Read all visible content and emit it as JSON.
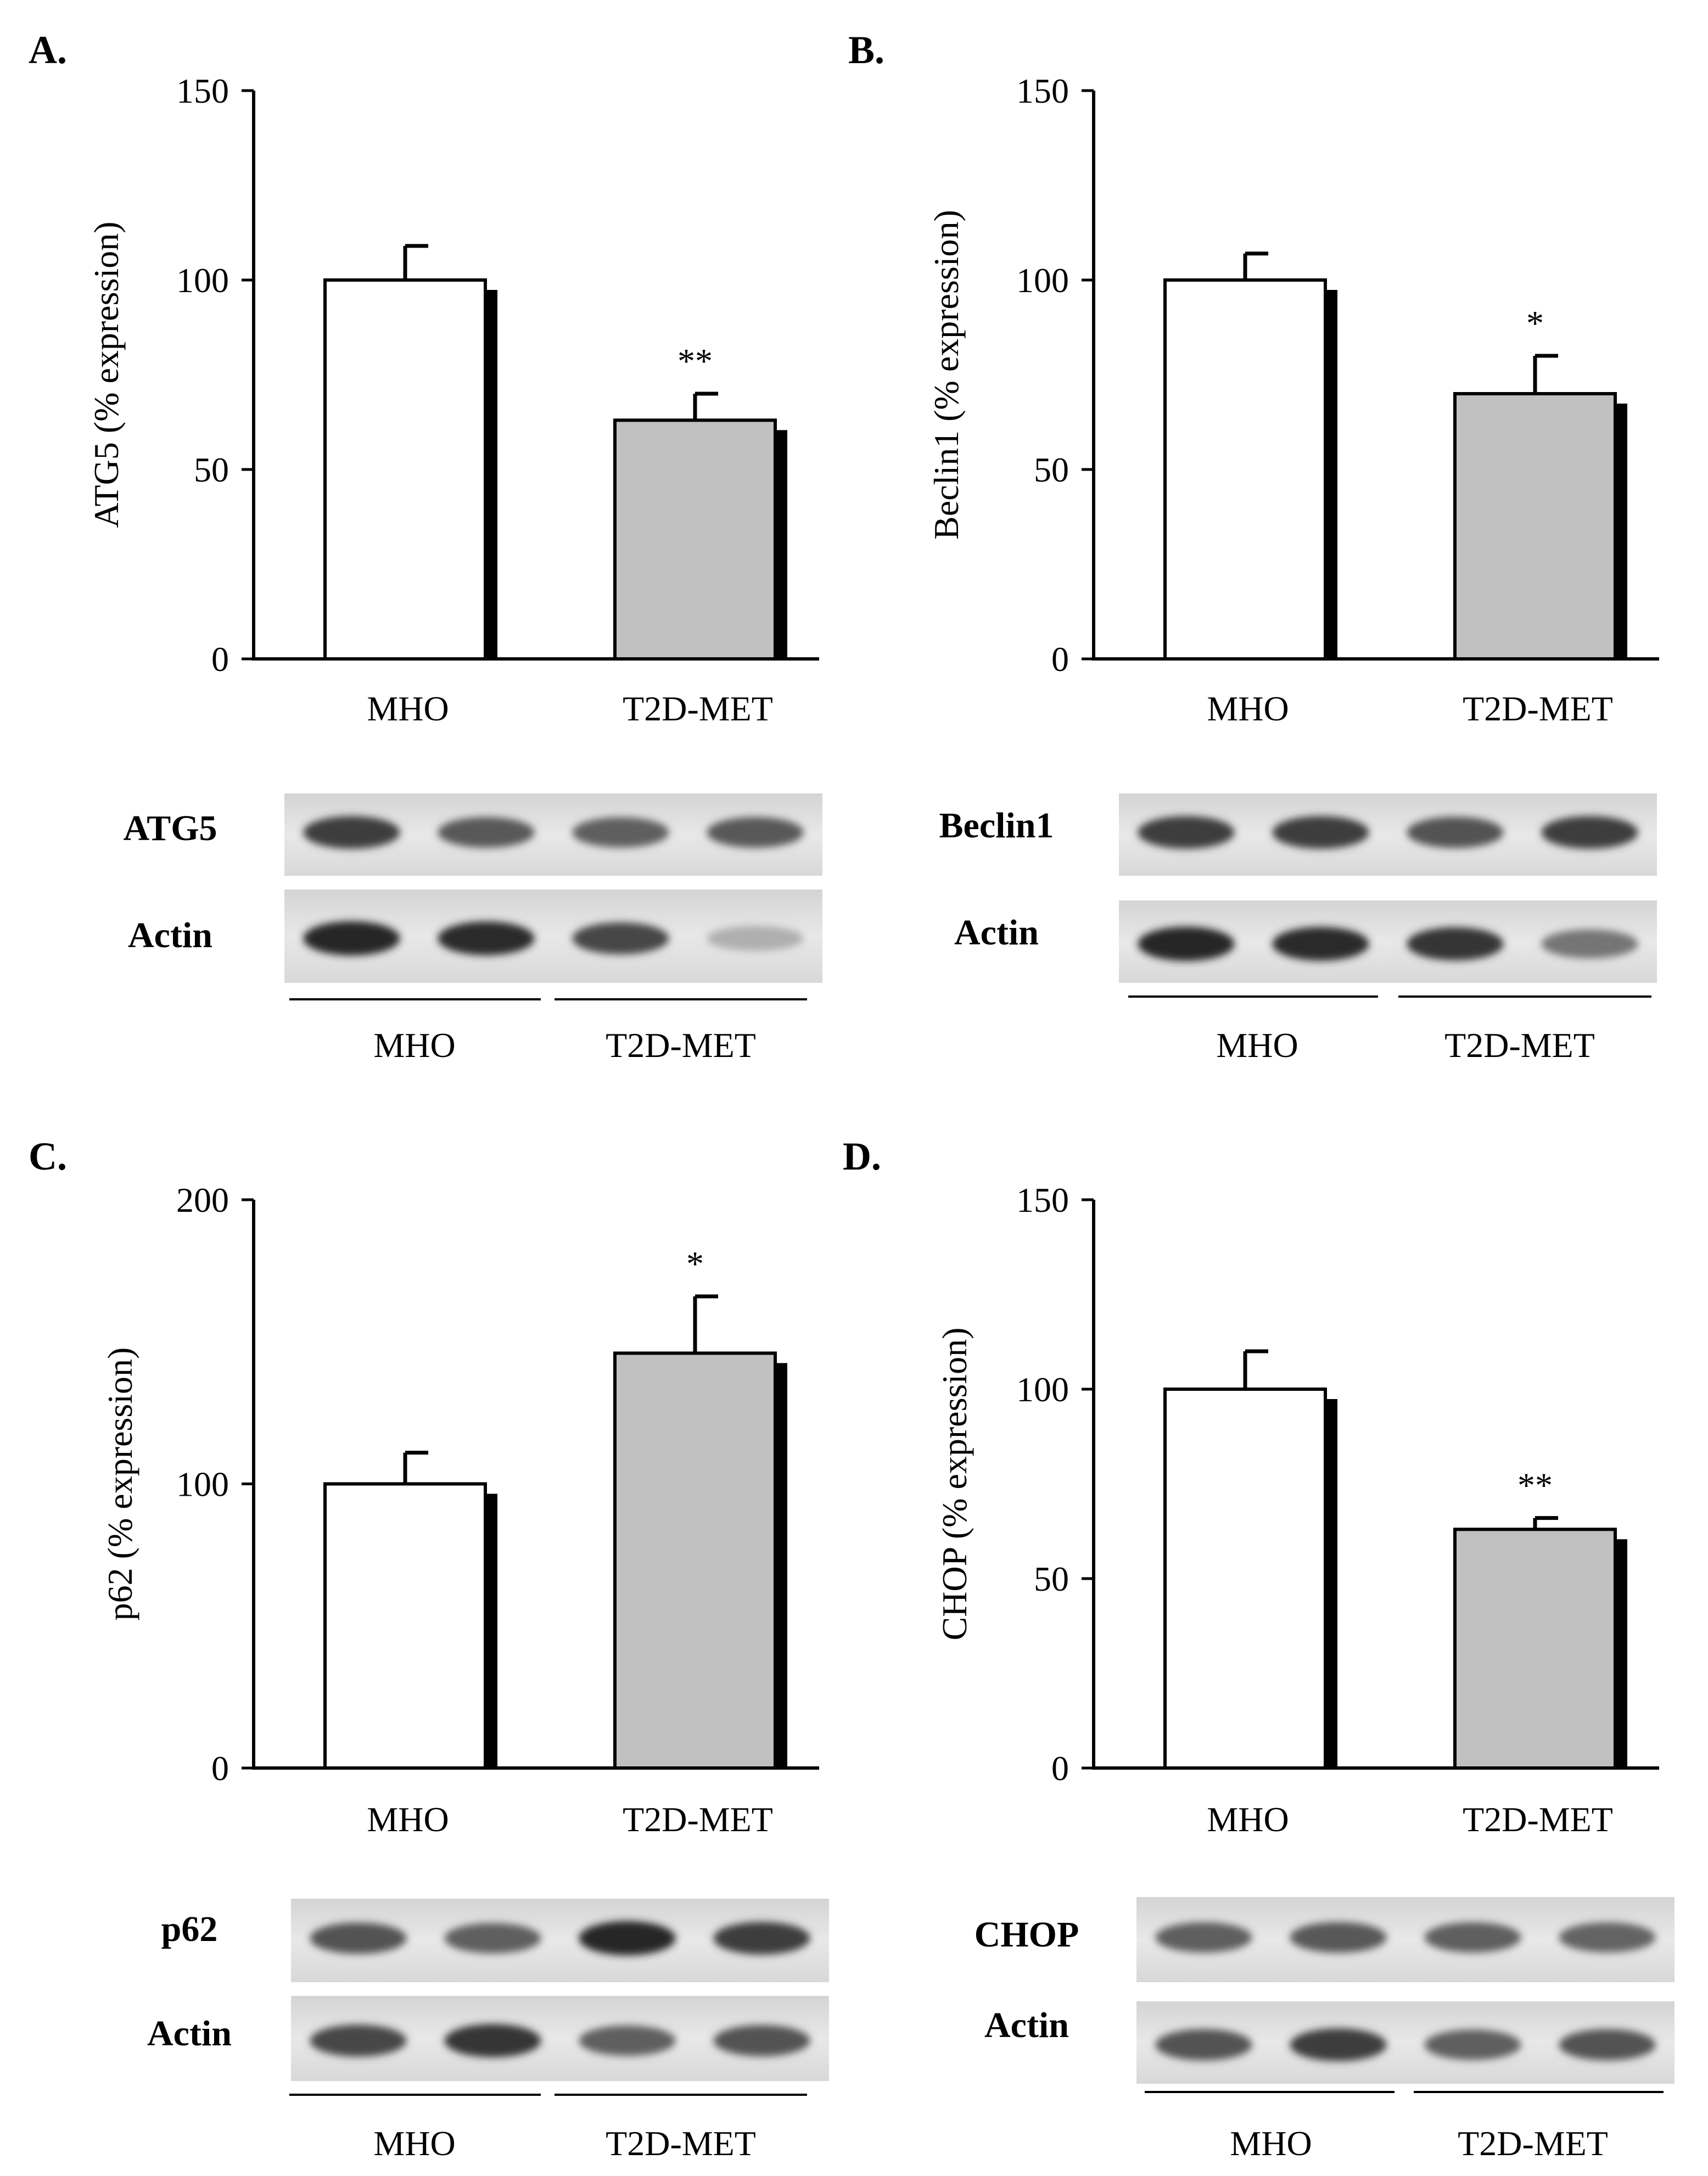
{
  "chart_data": [
    {
      "panel": "A.",
      "type": "bar",
      "ylabel": "ATG5  (% expression)",
      "ylim": [
        0,
        150
      ],
      "yticks": [
        0,
        50,
        100,
        150
      ],
      "categories": [
        "MHO",
        "T2D-MET"
      ],
      "values": [
        100,
        63
      ],
      "errors": [
        9,
        7
      ],
      "colors": [
        "#ffffff",
        "#c0c0c0"
      ],
      "significance": [
        "",
        "**"
      ],
      "blot": {
        "bands": [
          "ATG5",
          "Actin"
        ],
        "groups": [
          "MHO",
          "T2D-MET"
        ],
        "intensities": [
          [
            0.85,
            0.72,
            0.7,
            0.72
          ],
          [
            0.95,
            0.92,
            0.8,
            0.35
          ]
        ]
      }
    },
    {
      "panel": "B.",
      "type": "bar",
      "ylabel": "Beclin1 (% expression)",
      "ylim": [
        0,
        150
      ],
      "yticks": [
        0,
        50,
        100,
        150
      ],
      "categories": [
        "MHO",
        "T2D-MET"
      ],
      "values": [
        100,
        70
      ],
      "errors": [
        7,
        10
      ],
      "colors": [
        "#ffffff",
        "#c0c0c0"
      ],
      "significance": [
        "",
        "*"
      ],
      "blot": {
        "bands": [
          "Beclin1",
          "Actin"
        ],
        "groups": [
          "MHO",
          "T2D-MET"
        ],
        "intensities": [
          [
            0.85,
            0.85,
            0.75,
            0.85
          ],
          [
            0.95,
            0.92,
            0.88,
            0.6
          ]
        ]
      }
    },
    {
      "panel": "C.",
      "type": "bar",
      "ylabel": "p62 (% expression)",
      "ylim": [
        0,
        200
      ],
      "yticks": [
        0,
        100,
        200
      ],
      "categories": [
        "MHO",
        "T2D-MET"
      ],
      "values": [
        100,
        146
      ],
      "errors": [
        11,
        20
      ],
      "colors": [
        "#ffffff",
        "#c0c0c0"
      ],
      "significance": [
        "",
        "*"
      ],
      "blot": {
        "bands": [
          "p62",
          "Actin"
        ],
        "groups": [
          "MHO",
          "T2D-MET"
        ],
        "intensities": [
          [
            0.75,
            0.7,
            0.95,
            0.85
          ],
          [
            0.8,
            0.88,
            0.7,
            0.75
          ]
        ]
      }
    },
    {
      "panel": "D.",
      "type": "bar",
      "ylabel": "CHOP  (% expression)",
      "ylim": [
        0,
        150
      ],
      "yticks": [
        0,
        50,
        100,
        150
      ],
      "categories": [
        "MHO",
        "T2D-MET"
      ],
      "values": [
        100,
        63
      ],
      "errors": [
        10,
        3
      ],
      "colors": [
        "#ffffff",
        "#c0c0c0"
      ],
      "significance": [
        "",
        "**"
      ],
      "blot": {
        "bands": [
          "CHOP",
          "Actin"
        ],
        "groups": [
          "MHO",
          "T2D-MET"
        ],
        "intensities": [
          [
            0.7,
            0.72,
            0.7,
            0.68
          ],
          [
            0.75,
            0.85,
            0.7,
            0.75
          ]
        ]
      }
    }
  ]
}
